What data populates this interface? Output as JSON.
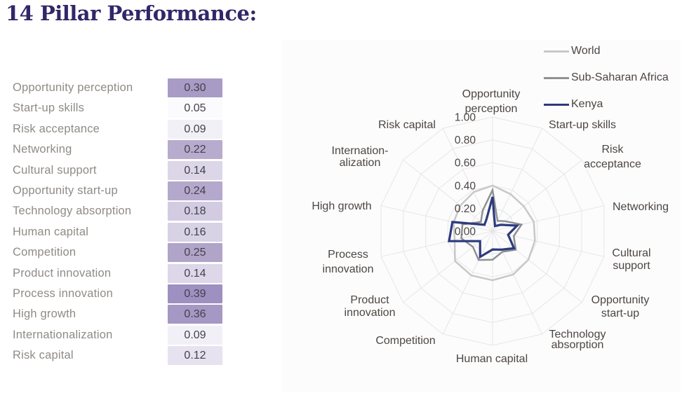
{
  "title": "14 Pillar Performance:",
  "table": {
    "rows": [
      {
        "label": "Opportunity perception",
        "value": "0.30",
        "cell_color": "#a89bc5"
      },
      {
        "label": "Start-up skills",
        "value": "0.05",
        "cell_color": "#fbfbfd"
      },
      {
        "label": "Risk acceptance",
        "value": "0.09",
        "cell_color": "#f2f0f7"
      },
      {
        "label": "Networking",
        "value": "0.22",
        "cell_color": "#b7abce"
      },
      {
        "label": "Cultural support",
        "value": "0.14",
        "cell_color": "#dcd6e8"
      },
      {
        "label": "Opportunity start-up",
        "value": "0.24",
        "cell_color": "#b4a8cc"
      },
      {
        "label": "Technology absorption",
        "value": "0.18",
        "cell_color": "#d2cbe1"
      },
      {
        "label": "Human capital",
        "value": "0.16",
        "cell_color": "#d8d2e5"
      },
      {
        "label": "Competition",
        "value": "0.25",
        "cell_color": "#b1a4c9"
      },
      {
        "label": "Product innovation",
        "value": "0.14",
        "cell_color": "#ddd7e9"
      },
      {
        "label": "Process innovation",
        "value": "0.39",
        "cell_color": "#9e90c0"
      },
      {
        "label": "High growth",
        "value": "0.36",
        "cell_color": "#a598c4"
      },
      {
        "label": "Internationalization",
        "value": "0.09",
        "cell_color": "#f2f0f7"
      },
      {
        "label": "Risk capital",
        "value": "0.12",
        "cell_color": "#e6e2ef"
      }
    ]
  },
  "chart_data": {
    "type": "radar",
    "title": "14 Pillar Performance",
    "categories": [
      "Opportunity perception",
      "Start-up skills",
      "Risk acceptance",
      "Networking",
      "Cultural support",
      "Opportunity start-up",
      "Technology absorption",
      "Human capital",
      "Competition",
      "Product innovation",
      "Process innovation",
      "High growth",
      "Internationalization",
      "Risk capital"
    ],
    "axis_label_lines": [
      [
        "Opportunity",
        "perception"
      ],
      [
        "Start-up skills"
      ],
      [
        "Risk",
        "acceptance"
      ],
      [
        "Networking"
      ],
      [
        "Cultural",
        "support"
      ],
      [
        "Opportunity",
        "start-up"
      ],
      [
        "Technology",
        "absorption"
      ],
      [
        "Human capital"
      ],
      [
        "Competition"
      ],
      [
        "Product",
        "innovation"
      ],
      [
        "Process",
        "innovation"
      ],
      [
        "High growth"
      ],
      [
        "Internation-",
        "alization"
      ],
      [
        "Risk capital"
      ]
    ],
    "rlim": [
      0,
      1
    ],
    "ring_values": [
      0.2,
      0.4,
      0.6,
      0.8,
      1.0
    ],
    "tick_labels": [
      "0.00",
      "0.20",
      "0.40",
      "0.60",
      "0.80",
      "1.00"
    ],
    "grid": true,
    "grid_color": "#e6e6e8",
    "tick_color": "#4c4641",
    "label_color": "#4c4641",
    "legend_position": "top-right",
    "series": [
      {
        "name": "World",
        "color": "#c7c8ca",
        "line_width": 2.5,
        "values": [
          0.4,
          0.36,
          0.35,
          0.37,
          0.38,
          0.4,
          0.42,
          0.43,
          0.43,
          0.42,
          0.34,
          0.35,
          0.36,
          0.38
        ]
      },
      {
        "name": "Sub-Saharan Africa",
        "color": "#8e9092",
        "line_width": 2.5,
        "values": [
          0.36,
          0.1,
          0.14,
          0.26,
          0.19,
          0.26,
          0.2,
          0.25,
          0.28,
          0.22,
          0.28,
          0.27,
          0.13,
          0.2
        ]
      },
      {
        "name": "Kenya",
        "color": "#2e3a7d",
        "line_width": 3.2,
        "values": [
          0.3,
          0.05,
          0.09,
          0.22,
          0.14,
          0.24,
          0.18,
          0.16,
          0.25,
          0.14,
          0.39,
          0.36,
          0.09,
          0.12
        ]
      }
    ]
  }
}
